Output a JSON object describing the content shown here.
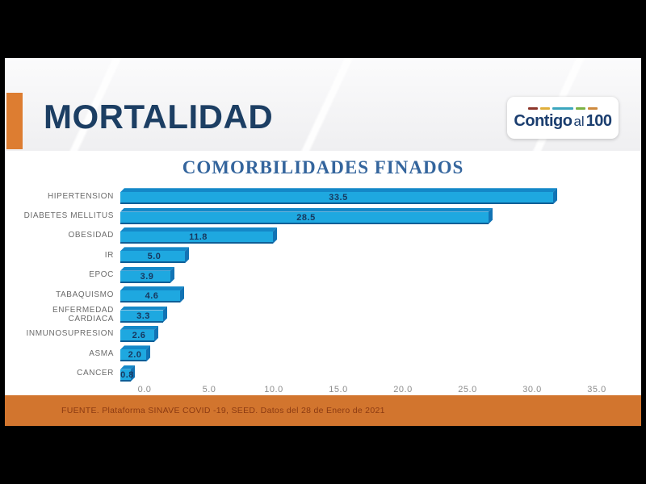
{
  "slide": {
    "header": {
      "title": "MORTALIDAD",
      "logo": {
        "part1": "Contigo",
        "part2": "al",
        "part3": "100",
        "dash_colors": [
          "#8c352a",
          "#e0af3b",
          "#3ba6be",
          "#7bb244",
          "#ce8a3e"
        ]
      }
    },
    "footer": {
      "source": "FUENTE. Plataforma SINAVE COVID -19, SEED. Datos del 28 de Enero de 2021"
    },
    "colors": {
      "accent_orange": "#dd7d31",
      "band_orange": "#d2752e",
      "header_navy": "#1c3e63",
      "title_blue": "#34659d"
    }
  },
  "chart_data": {
    "type": "bar",
    "orientation": "horizontal",
    "title": "COMORBILIDADES FINADOS",
    "categories": [
      "HIPERTENSION",
      "DIABETES MELLITUS",
      "OBESIDAD",
      "IR",
      "EPOC",
      "TABAQUISMO",
      "ENFERMEDAD CARDIACA",
      "INMUNOSUPRESION",
      "ASMA",
      "CANCER"
    ],
    "values": [
      33.5,
      28.5,
      11.8,
      5.0,
      3.9,
      4.6,
      3.3,
      2.6,
      2.0,
      0.8
    ],
    "value_labels": [
      "33.5",
      "28.5",
      "11.8",
      "5.0",
      "3.9",
      "4.6",
      "3.3",
      "2.6",
      "2.0",
      "0.8"
    ],
    "x_ticks": [
      0,
      5,
      10,
      15,
      20,
      25,
      30,
      35
    ],
    "x_tick_labels": [
      "0.0",
      "5.0",
      "10.0",
      "15.0",
      "20.0",
      "25.0",
      "30.0",
      "35.0"
    ],
    "xlim": [
      0,
      35
    ],
    "grid": false,
    "legend": false,
    "bar_color": "#1ea8e0",
    "bar_top_color": "#1488c8",
    "bar_side_color": "#1273b4",
    "value_label_color": "#17375e"
  }
}
